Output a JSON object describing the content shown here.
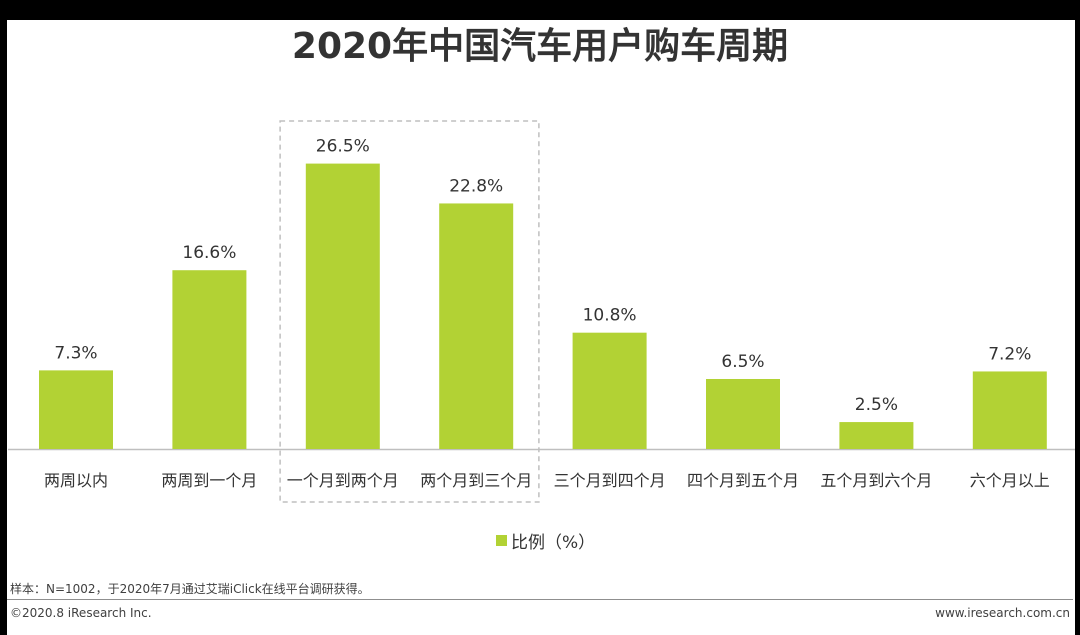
{
  "chart_data": {
    "type": "bar",
    "title": "2020年中国汽车用户购车周期",
    "categories": [
      "两周以内",
      "两周到一个月",
      "一个月到两个月",
      "两个月到三个月",
      "三个月到四个月",
      "四个月到五个月",
      "五个月到六个月",
      "六个月以上"
    ],
    "series": [
      {
        "name": "比例（%）",
        "values": [
          7.3,
          16.6,
          26.5,
          22.8,
          10.8,
          6.5,
          2.5,
          7.2
        ],
        "labels": [
          "7.3%",
          "16.6%",
          "26.5%",
          "22.8%",
          "10.8%",
          "6.5%",
          "2.5%",
          "7.2%"
        ]
      }
    ],
    "ylim": [
      0,
      30
    ],
    "grid": false,
    "legend_position": "bottom",
    "bar_color": "#b2d234",
    "highlight_categories": [
      "一个月到两个月",
      "两个月到三个月"
    ]
  },
  "footer": {
    "note": "样本：N=1002，于2020年7月通过艾瑞iClick在线平台调研获得。",
    "copyright": "©2020.8 iResearch Inc.",
    "site": "www.iresearch.com.cn"
  },
  "colors": {
    "bar": "#b2d234",
    "text": "#333333",
    "axis": "#bfbfbf",
    "highlight_border": "#bfbfbf"
  }
}
